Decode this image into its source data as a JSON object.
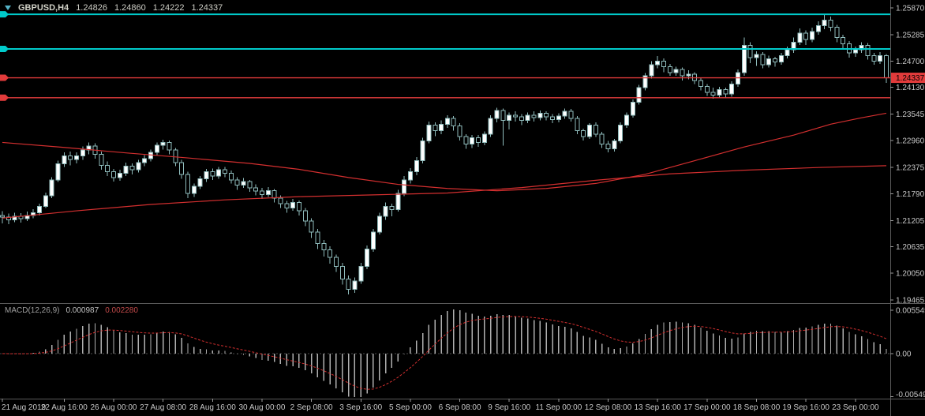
{
  "header": {
    "symbol_period": "GBPUSD,H4",
    "open": "1.24826",
    "high": "1.24860",
    "low": "1.24222",
    "close": "1.24337"
  },
  "colors": {
    "background": "#000000",
    "candle_outline": "#8fbcbc",
    "candle_bull": "#ffffff",
    "candle_bear": "#000000",
    "ma_color": "#d32f2f",
    "hline_cyan": "#00cbcb",
    "hline_red": "#e23b3b",
    "price_tag_bg": "#e23b3b",
    "price_tag_text": "#000000",
    "axis_text": "#c8c8c8",
    "separator": "#5a5a5a",
    "macd_hist": "#b0b0b0",
    "macd_signal": "#d32f2f",
    "zero_line": "#4a4a4a"
  },
  "chart_data": {
    "type": "candlestick",
    "title": "GBPUSD,H4",
    "symbol": "GBPUSD",
    "timeframe": "H4",
    "legend_position": "top-left overlay",
    "grid": false,
    "last_quote": {
      "open": 1.24826,
      "high": 1.2486,
      "low": 1.24222,
      "close": 1.24337
    },
    "price_axis": {
      "ticks": [
        "1.25870",
        "1.25285",
        "1.24700",
        "1.24130",
        "1.23545",
        "1.22960",
        "1.22375",
        "1.21790",
        "1.21205",
        "1.20635",
        "1.20050",
        "1.19465"
      ],
      "current_price_label": "1.24337"
    },
    "time_axis": {
      "labels": [
        {
          "label": "21 Aug 2019",
          "bar": 0
        },
        {
          "label": "22 Aug 16:00",
          "bar": 10
        },
        {
          "label": "26 Aug 00:00",
          "bar": 18
        },
        {
          "label": "27 Aug 08:00",
          "bar": 26
        },
        {
          "label": "28 Aug 16:00",
          "bar": 34
        },
        {
          "label": "30 Aug 00:00",
          "bar": 42
        },
        {
          "label": "2 Sep 08:00",
          "bar": 50
        },
        {
          "label": "3 Sep 16:00",
          "bar": 58
        },
        {
          "label": "5 Sep 00:00",
          "bar": 66
        },
        {
          "label": "6 Sep 08:00",
          "bar": 74
        },
        {
          "label": "9 Sep 16:00",
          "bar": 82
        },
        {
          "label": "11 Sep 00:00",
          "bar": 90
        },
        {
          "label": "12 Sep 08:00",
          "bar": 98
        },
        {
          "label": "13 Sep 16:00",
          "bar": 106
        },
        {
          "label": "17 Sep 00:00",
          "bar": 114
        },
        {
          "label": "18 Sep 08:00",
          "bar": 122
        },
        {
          "label": "19 Sep 16:00",
          "bar": 130
        },
        {
          "label": "23 Sep 00:00",
          "bar": 138
        }
      ]
    },
    "horizontal_lines": [
      {
        "price": 1.2573,
        "color_key": "cyan"
      },
      {
        "price": 1.2497,
        "color_key": "cyan"
      },
      {
        "price": 1.24337,
        "color_key": "red",
        "tag": true
      },
      {
        "price": 1.239,
        "color_key": "red"
      }
    ],
    "moving_averages": [
      {
        "name": "moving-average-fast",
        "points": [
          [
            0,
            1.2292
          ],
          [
            10,
            1.2281
          ],
          [
            20,
            1.2269
          ],
          [
            30,
            1.2258
          ],
          [
            40,
            1.2246
          ],
          [
            48,
            1.2233
          ],
          [
            56,
            1.2215
          ],
          [
            64,
            1.22
          ],
          [
            72,
            1.2191
          ],
          [
            80,
            1.2186
          ],
          [
            88,
            1.2191
          ],
          [
            96,
            1.2202
          ],
          [
            104,
            1.2222
          ],
          [
            112,
            1.2252
          ],
          [
            120,
            1.2282
          ],
          [
            128,
            1.2308
          ],
          [
            134,
            1.2332
          ],
          [
            139,
            1.2346
          ],
          [
            143,
            1.2356
          ]
        ]
      },
      {
        "name": "moving-average-slow",
        "points": [
          [
            0,
            1.2126
          ],
          [
            12,
            1.2142
          ],
          [
            24,
            1.2156
          ],
          [
            36,
            1.2166
          ],
          [
            48,
            1.2173
          ],
          [
            60,
            1.2177
          ],
          [
            72,
            1.2181
          ],
          [
            84,
            1.2193
          ],
          [
            96,
            1.2209
          ],
          [
            108,
            1.2223
          ],
          [
            120,
            1.2231
          ],
          [
            132,
            1.2237
          ],
          [
            143,
            1.2241
          ]
        ]
      }
    ],
    "candles": [
      [
        1.2132,
        1.2141,
        1.2114,
        1.2128
      ],
      [
        1.2128,
        1.2136,
        1.2113,
        1.2122
      ],
      [
        1.2122,
        1.2138,
        1.2117,
        1.213
      ],
      [
        1.213,
        1.2137,
        1.2116,
        1.2125
      ],
      [
        1.2125,
        1.214,
        1.212,
        1.2132
      ],
      [
        1.2132,
        1.2146,
        1.2126,
        1.2138
      ],
      [
        1.2138,
        1.2158,
        1.2132,
        1.2152
      ],
      [
        1.2152,
        1.2182,
        1.2148,
        1.2175
      ],
      [
        1.2175,
        1.2216,
        1.217,
        1.221
      ],
      [
        1.221,
        1.2252,
        1.2205,
        1.2245
      ],
      [
        1.2245,
        1.227,
        1.2238,
        1.2262
      ],
      [
        1.2262,
        1.2272,
        1.2242,
        1.2255
      ],
      [
        1.2255,
        1.227,
        1.2246,
        1.2262
      ],
      [
        1.2262,
        1.2283,
        1.2254,
        1.2275
      ],
      [
        1.2275,
        1.2292,
        1.2266,
        1.2284
      ],
      [
        1.2284,
        1.229,
        1.2256,
        1.2266
      ],
      [
        1.2266,
        1.2272,
        1.2232,
        1.2242
      ],
      [
        1.2242,
        1.225,
        1.2218,
        1.2228
      ],
      [
        1.2228,
        1.2234,
        1.2206,
        1.2215
      ],
      [
        1.2215,
        1.2232,
        1.2208,
        1.2224
      ],
      [
        1.2224,
        1.2248,
        1.2218,
        1.224
      ],
      [
        1.224,
        1.2246,
        1.2222,
        1.2232
      ],
      [
        1.2232,
        1.2254,
        1.2226,
        1.2248
      ],
      [
        1.2248,
        1.2264,
        1.224,
        1.2256
      ],
      [
        1.2256,
        1.2276,
        1.225,
        1.227
      ],
      [
        1.227,
        1.2292,
        1.2264,
        1.2286
      ],
      [
        1.2286,
        1.2298,
        1.2276,
        1.2292
      ],
      [
        1.2292,
        1.2296,
        1.2266,
        1.2275
      ],
      [
        1.2275,
        1.228,
        1.224,
        1.2248
      ],
      [
        1.2248,
        1.2254,
        1.2212,
        1.2222
      ],
      [
        1.2222,
        1.2228,
        1.217,
        1.218
      ],
      [
        1.218,
        1.2202,
        1.2172,
        1.2196
      ],
      [
        1.2196,
        1.2218,
        1.219,
        1.2212
      ],
      [
        1.2212,
        1.2234,
        1.2205,
        1.2228
      ],
      [
        1.2228,
        1.2235,
        1.221,
        1.2218
      ],
      [
        1.2218,
        1.2238,
        1.2212,
        1.2232
      ],
      [
        1.2232,
        1.2238,
        1.2216,
        1.2224
      ],
      [
        1.2224,
        1.223,
        1.2202,
        1.221
      ],
      [
        1.221,
        1.2216,
        1.2188,
        1.2198
      ],
      [
        1.2198,
        1.2214,
        1.2192,
        1.2206
      ],
      [
        1.2206,
        1.221,
        1.2184,
        1.2192
      ],
      [
        1.2192,
        1.22,
        1.2176,
        1.2185
      ],
      [
        1.2185,
        1.2192,
        1.2168,
        1.2178
      ],
      [
        1.2178,
        1.2194,
        1.2172,
        1.2186
      ],
      [
        1.2186,
        1.219,
        1.216,
        1.217
      ],
      [
        1.217,
        1.2176,
        1.2148,
        1.2158
      ],
      [
        1.2158,
        1.2164,
        1.2138,
        1.2148
      ],
      [
        1.2148,
        1.2168,
        1.2142,
        1.216
      ],
      [
        1.216,
        1.2165,
        1.2132,
        1.2142
      ],
      [
        1.2142,
        1.2148,
        1.2108,
        1.212
      ],
      [
        1.212,
        1.2126,
        1.2082,
        1.2095
      ],
      [
        1.2095,
        1.2102,
        1.2058,
        1.207
      ],
      [
        1.207,
        1.2078,
        1.2042,
        1.2056
      ],
      [
        1.2056,
        1.2064,
        1.2026,
        1.204
      ],
      [
        1.204,
        1.2046,
        1.2008,
        1.202
      ],
      [
        1.202,
        1.2028,
        1.198,
        1.1992
      ],
      [
        1.1992,
        1.2,
        1.1959,
        1.197
      ],
      [
        1.197,
        1.1996,
        1.1962,
        1.1988
      ],
      [
        1.1988,
        1.2028,
        1.1982,
        1.202
      ],
      [
        1.202,
        1.2066,
        1.2014,
        1.2058
      ],
      [
        1.2058,
        1.2102,
        1.2052,
        1.2095
      ],
      [
        1.2095,
        1.2138,
        1.209,
        1.213
      ],
      [
        1.213,
        1.216,
        1.2122,
        1.2152
      ],
      [
        1.2152,
        1.2158,
        1.213,
        1.2145
      ],
      [
        1.2145,
        1.2188,
        1.214,
        1.218
      ],
      [
        1.218,
        1.2218,
        1.2174,
        1.221
      ],
      [
        1.221,
        1.2236,
        1.2202,
        1.2228
      ],
      [
        1.2228,
        1.226,
        1.222,
        1.2252
      ],
      [
        1.2252,
        1.2302,
        1.2246,
        1.2295
      ],
      [
        1.2295,
        1.2338,
        1.229,
        1.233
      ],
      [
        1.233,
        1.2336,
        1.2306,
        1.2318
      ],
      [
        1.2318,
        1.234,
        1.231,
        1.2332
      ],
      [
        1.2332,
        1.2352,
        1.2324,
        1.2345
      ],
      [
        1.2345,
        1.235,
        1.2318,
        1.2328
      ],
      [
        1.2328,
        1.2334,
        1.2296,
        1.2305
      ],
      [
        1.2305,
        1.231,
        1.2278,
        1.2288
      ],
      [
        1.2288,
        1.2308,
        1.228,
        1.2302
      ],
      [
        1.2302,
        1.2308,
        1.2282,
        1.2292
      ],
      [
        1.2292,
        1.2316,
        1.2286,
        1.231
      ],
      [
        1.231,
        1.2352,
        1.2304,
        1.2345
      ],
      [
        1.2345,
        1.2368,
        1.2336,
        1.2362
      ],
      [
        1.2362,
        1.2366,
        1.2285,
        1.234
      ],
      [
        1.234,
        1.2358,
        1.232,
        1.2352
      ],
      [
        1.2352,
        1.236,
        1.2338,
        1.2348
      ],
      [
        1.2348,
        1.2354,
        1.233,
        1.234
      ],
      [
        1.234,
        1.2358,
        1.2334,
        1.2352
      ],
      [
        1.2352,
        1.236,
        1.2338,
        1.2346
      ],
      [
        1.2346,
        1.2362,
        1.234,
        1.2356
      ],
      [
        1.2356,
        1.236,
        1.234,
        1.2348
      ],
      [
        1.2348,
        1.2354,
        1.2334,
        1.2342
      ],
      [
        1.2342,
        1.2356,
        1.2336,
        1.235
      ],
      [
        1.235,
        1.2366,
        1.2344,
        1.236
      ],
      [
        1.236,
        1.2365,
        1.2338,
        1.2345
      ],
      [
        1.2345,
        1.235,
        1.231,
        1.2318
      ],
      [
        1.2318,
        1.2322,
        1.2296,
        1.2305
      ],
      [
        1.2305,
        1.2334,
        1.23,
        1.233
      ],
      [
        1.233,
        1.2336,
        1.2304,
        1.231
      ],
      [
        1.231,
        1.2315,
        1.228,
        1.2288
      ],
      [
        1.2288,
        1.2295,
        1.227,
        1.2278
      ],
      [
        1.2278,
        1.23,
        1.2272,
        1.2295
      ],
      [
        1.2295,
        1.2336,
        1.229,
        1.233
      ],
      [
        1.233,
        1.2358,
        1.2324,
        1.2352
      ],
      [
        1.2352,
        1.2386,
        1.2346,
        1.238
      ],
      [
        1.238,
        1.2418,
        1.2375,
        1.2412
      ],
      [
        1.2412,
        1.2444,
        1.2406,
        1.2438
      ],
      [
        1.2438,
        1.247,
        1.2432,
        1.2462
      ],
      [
        1.2462,
        1.2481,
        1.2455,
        1.247
      ],
      [
        1.247,
        1.2476,
        1.2446,
        1.2458
      ],
      [
        1.2458,
        1.2464,
        1.2438,
        1.2445
      ],
      [
        1.2445,
        1.2458,
        1.2438,
        1.2452
      ],
      [
        1.2452,
        1.2456,
        1.2428,
        1.2438
      ],
      [
        1.2438,
        1.245,
        1.243,
        1.2442
      ],
      [
        1.2442,
        1.2446,
        1.242,
        1.2428
      ],
      [
        1.2428,
        1.2434,
        1.2406,
        1.2415
      ],
      [
        1.2415,
        1.242,
        1.2394,
        1.2402
      ],
      [
        1.2402,
        1.2412,
        1.2388,
        1.2396
      ],
      [
        1.2396,
        1.2414,
        1.239,
        1.2408
      ],
      [
        1.2408,
        1.2412,
        1.239,
        1.2398
      ],
      [
        1.2398,
        1.2426,
        1.2392,
        1.242
      ],
      [
        1.242,
        1.2452,
        1.2414,
        1.2445
      ],
      [
        1.2445,
        1.2522,
        1.2438,
        1.2505
      ],
      [
        1.2505,
        1.2512,
        1.2466,
        1.2478
      ],
      [
        1.2478,
        1.2492,
        1.246,
        1.2485
      ],
      [
        1.2485,
        1.249,
        1.2455,
        1.2462
      ],
      [
        1.2462,
        1.2482,
        1.2456,
        1.2475
      ],
      [
        1.2475,
        1.248,
        1.2458,
        1.2468
      ],
      [
        1.2468,
        1.2488,
        1.2462,
        1.2482
      ],
      [
        1.2482,
        1.2502,
        1.2476,
        1.2495
      ],
      [
        1.2495,
        1.2522,
        1.2488,
        1.2512
      ],
      [
        1.2512,
        1.2542,
        1.2506,
        1.2532
      ],
      [
        1.2532,
        1.2538,
        1.2506,
        1.2518
      ],
      [
        1.2518,
        1.2544,
        1.2512,
        1.2535
      ],
      [
        1.2535,
        1.2558,
        1.2528,
        1.2548
      ],
      [
        1.2548,
        1.2572,
        1.254,
        1.256
      ],
      [
        1.256,
        1.2568,
        1.2536,
        1.2545
      ],
      [
        1.2545,
        1.255,
        1.2512,
        1.2522
      ],
      [
        1.2522,
        1.2528,
        1.2498,
        1.2508
      ],
      [
        1.2508,
        1.2514,
        1.2478,
        1.2488
      ],
      [
        1.2488,
        1.2502,
        1.248,
        1.2495
      ],
      [
        1.2495,
        1.2512,
        1.2488,
        1.2505
      ],
      [
        1.2505,
        1.251,
        1.2474,
        1.2482
      ],
      [
        1.2482,
        1.2488,
        1.2462,
        1.247
      ],
      [
        1.247,
        1.249,
        1.2464,
        1.24826
      ],
      [
        1.24826,
        1.2486,
        1.24222,
        1.24337
      ]
    ],
    "macd": {
      "label": "MACD(12,26,9)",
      "params": [
        12,
        26,
        9
      ],
      "value_main": "0.000987",
      "value_signal": "0.002280",
      "scale_labels": [
        "0.005545",
        "0.00",
        "-0.005493"
      ],
      "scale_max": 0.005545,
      "scale_min": -0.005493
    }
  }
}
